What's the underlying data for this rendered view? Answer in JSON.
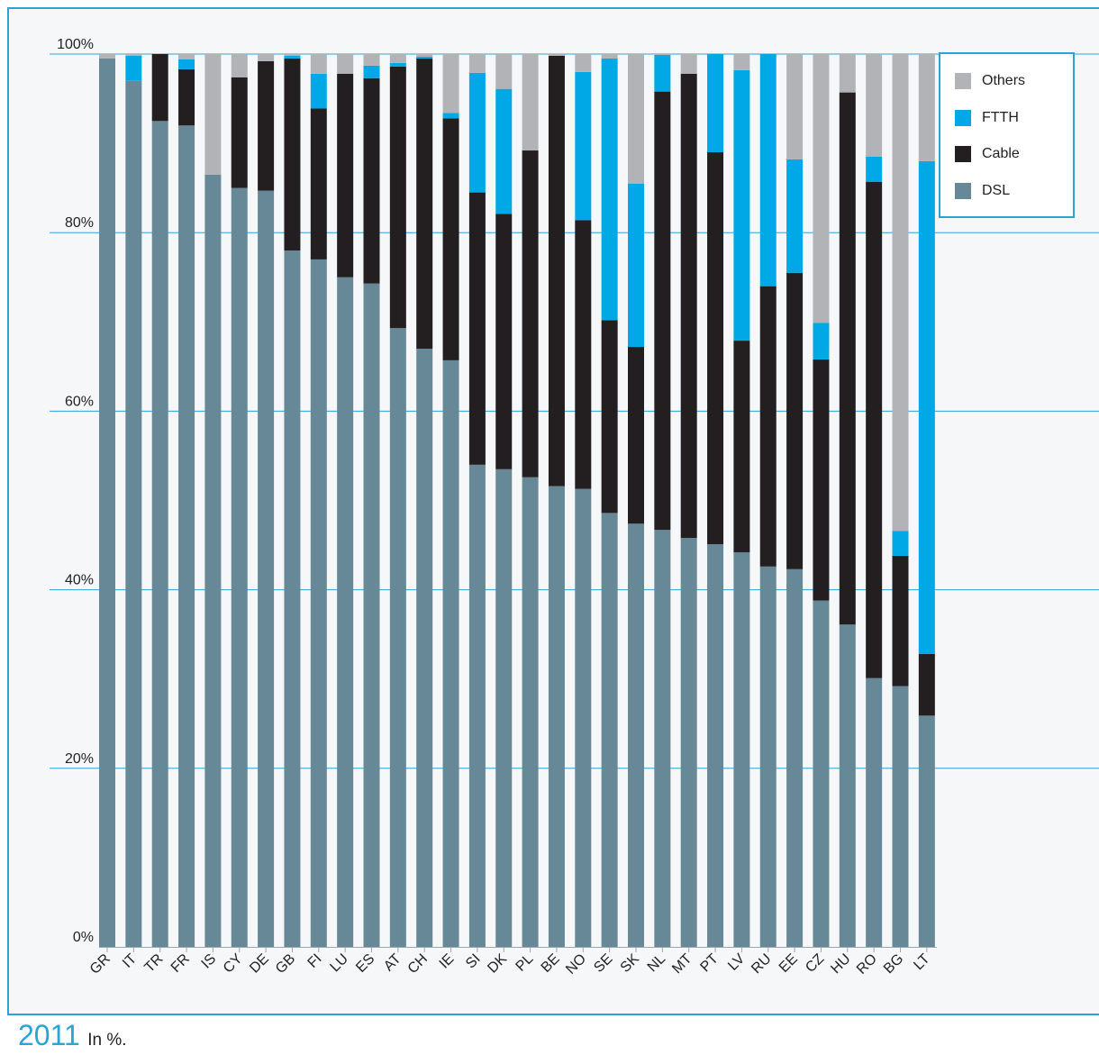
{
  "caption": {
    "year": "2011",
    "unit_text": "In %."
  },
  "colors": {
    "Others": "#b2b3b6",
    "FTTH": "#00a9e6",
    "Cable": "#231f20",
    "DSL": "#678896",
    "accent": "#2aa3d6",
    "grid": "#2aa3d6"
  },
  "chart_data": {
    "type": "bar",
    "stacked": true,
    "title": "",
    "xlabel": "",
    "ylabel": "",
    "ylim": [
      0,
      100
    ],
    "yticks": [
      "0%",
      "20%",
      "40%",
      "60%",
      "80%",
      "100%"
    ],
    "legend_position": "top-right",
    "grid": true,
    "categories": [
      "GR",
      "IT",
      "TR",
      "FR",
      "IS",
      "CY",
      "DE",
      "GB",
      "FI",
      "LU",
      "ES",
      "AT",
      "CH",
      "IE",
      "SI",
      "DK",
      "PL",
      "BE",
      "NO",
      "SE",
      "SK",
      "NL",
      "MT",
      "PT",
      "LV",
      "RU",
      "EE",
      "CZ",
      "HU",
      "RO",
      "BG",
      "LT"
    ],
    "series": [
      {
        "name": "DSL",
        "values": [
          99.5,
          97.0,
          92.5,
          92.0,
          86.5,
          85.0,
          84.7,
          78.0,
          77.0,
          75.0,
          74.3,
          69.3,
          67.0,
          65.7,
          54.0,
          53.5,
          52.6,
          51.6,
          51.3,
          48.6,
          47.4,
          46.7,
          45.8,
          45.1,
          44.2,
          42.6,
          42.3,
          38.8,
          36.1,
          30.1,
          29.2,
          25.9
        ]
      },
      {
        "name": "Cable",
        "values": [
          0.0,
          0.0,
          7.5,
          6.3,
          0.0,
          12.4,
          14.5,
          21.5,
          16.9,
          22.8,
          23.0,
          29.3,
          32.5,
          27.1,
          30.5,
          28.6,
          36.6,
          48.2,
          30.1,
          21.6,
          19.8,
          49.1,
          52.0,
          43.9,
          23.7,
          31.4,
          33.2,
          27.0,
          59.6,
          55.6,
          14.6,
          6.9
        ]
      },
      {
        "name": "FTTH",
        "values": [
          0.0,
          2.8,
          0.0,
          1.1,
          0.0,
          0.0,
          0.0,
          0.3,
          3.9,
          0.0,
          1.4,
          0.4,
          0.2,
          0.6,
          13.4,
          14.0,
          0.0,
          0.0,
          16.6,
          29.3,
          18.3,
          4.1,
          0.0,
          11.0,
          30.3,
          26.0,
          12.7,
          4.1,
          0.0,
          2.8,
          2.8,
          55.2
        ]
      },
      {
        "name": "Others",
        "values": [
          0.5,
          0.2,
          0.0,
          0.6,
          13.5,
          2.6,
          0.8,
          0.2,
          2.2,
          2.2,
          1.3,
          1.0,
          0.3,
          6.6,
          2.1,
          3.9,
          10.8,
          0.2,
          2.0,
          0.5,
          14.5,
          0.1,
          2.2,
          0.0,
          1.8,
          0.0,
          11.8,
          30.1,
          4.3,
          11.5,
          53.4,
          12.0
        ]
      }
    ]
  },
  "legend": {
    "items": [
      {
        "name": "Others",
        "label": "Others"
      },
      {
        "name": "FTTH",
        "label": "FTTH"
      },
      {
        "name": "Cable",
        "label": "Cable"
      },
      {
        "name": "DSL",
        "label": "DSL"
      }
    ]
  }
}
